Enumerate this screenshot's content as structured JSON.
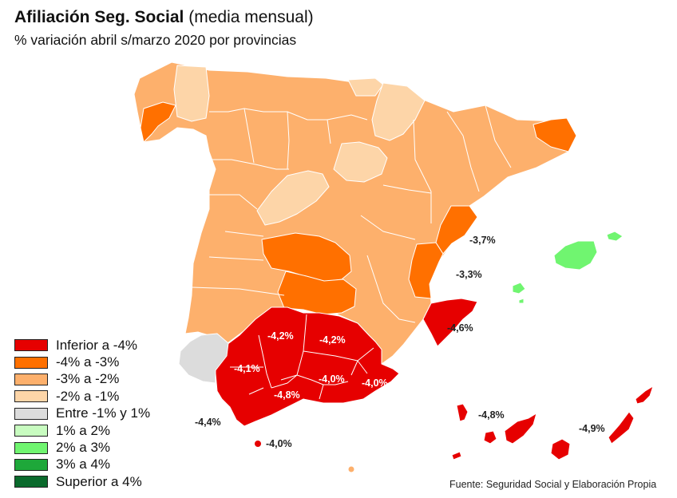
{
  "title": {
    "bold": "Afiliación Seg. Social",
    "normal": "(media mensual)"
  },
  "subtitle": "% variación abril s/marzo 2020 por provincias",
  "legend": [
    {
      "label": "Inferior a -4%",
      "color": "#e60000"
    },
    {
      "label": "-4% a -3%",
      "color": "#ff7000"
    },
    {
      "label": "-3% a -2%",
      "color": "#fdb06c"
    },
    {
      "label": "-2% a -1%",
      "color": "#fdd5a8"
    },
    {
      "label": "Entre -1% y 1%",
      "color": "#dcdcdc"
    },
    {
      "label": "1% a 2%",
      "color": "#c8fcc0"
    },
    {
      "label": "2% a 3%",
      "color": "#70f570"
    },
    {
      "label": "3% a 4%",
      "color": "#1ea83a"
    },
    {
      "label": "Superior a 4%",
      "color": "#0a6a2c"
    }
  ],
  "labels": {
    "castellon": "-3,7%",
    "valencia": "-3,3%",
    "alicante": "-4,6%",
    "jaen": "-4,2%",
    "cordoba": "-4,2%",
    "sevilla": "-4,1%",
    "granada": "-4,0%",
    "almeria": "-4,0%",
    "malaga": "-4,8%",
    "cadiz": "-4,4%",
    "ceuta": "-4,0%",
    "santa_cruz": "-4,8%",
    "las_palmas": "-4,9%"
  },
  "source": "Fuente: Seguridad Social y Elaboración Propia"
}
